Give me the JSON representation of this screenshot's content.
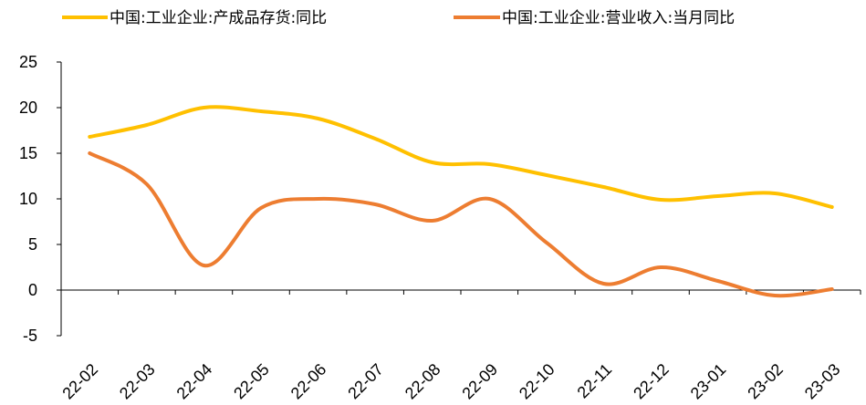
{
  "chart_data": {
    "type": "line",
    "title": "",
    "xlabel": "",
    "ylabel": "",
    "categories": [
      "22-02",
      "22-03",
      "22-04",
      "22-05",
      "22-06",
      "22-07",
      "22-08",
      "22-09",
      "22-10",
      "22-11",
      "22-12",
      "23-01",
      "23-02",
      "23-03"
    ],
    "ylim": [
      -5,
      25
    ],
    "yticks": [
      -5,
      0,
      5,
      10,
      15,
      20,
      25
    ],
    "grid": false,
    "legend_position": "top",
    "series": [
      {
        "name": "中国:工业企业:产成品存货:同比",
        "color": "#FFC000",
        "values": [
          16.8,
          18.1,
          20.0,
          19.6,
          18.8,
          16.6,
          14.0,
          13.8,
          12.6,
          11.3,
          9.9,
          10.3,
          10.6,
          9.1
        ]
      },
      {
        "name": "中国:工业企业:营业收入:当月同比",
        "color": "#ED7D31",
        "values": [
          15.0,
          11.6,
          2.7,
          9.0,
          10.0,
          9.4,
          7.6,
          10.0,
          5.2,
          0.7,
          2.5,
          1.0,
          -0.6,
          0.1
        ]
      }
    ]
  }
}
